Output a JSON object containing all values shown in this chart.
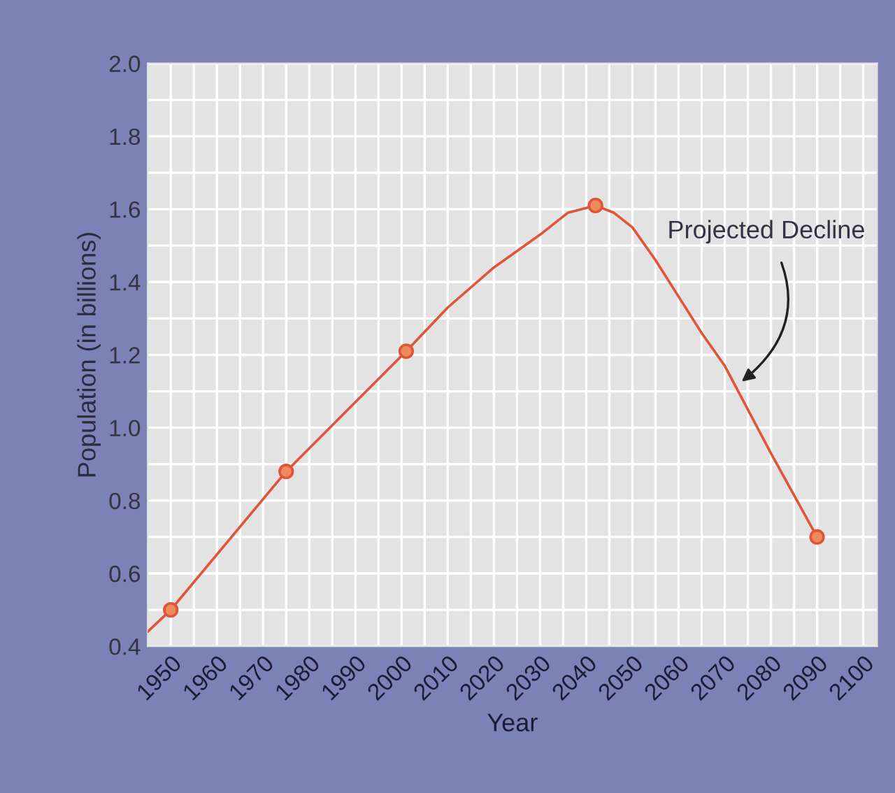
{
  "chart_data": {
    "type": "line",
    "xlabel": "Year",
    "ylabel": "Population (in billions)",
    "xlim": [
      1945,
      2103
    ],
    "ylim": [
      0.4,
      2.0
    ],
    "xticks": [
      1950,
      {
        "value": 1955,
        "label": null
      },
      1960,
      {
        "value": 1965,
        "label": null
      },
      1970,
      {
        "value": 1975,
        "label": null
      },
      1980,
      {
        "value": 1985,
        "label": null
      },
      1990,
      {
        "value": 1995,
        "label": null
      },
      2000,
      {
        "value": 2005,
        "label": null
      },
      2010,
      {
        "value": 2015,
        "label": null
      },
      2020,
      {
        "value": 2025,
        "label": null
      },
      2030,
      {
        "value": 2035,
        "label": null
      },
      2040,
      {
        "value": 2045,
        "label": null
      },
      2050,
      {
        "value": 2055,
        "label": null
      },
      2060,
      {
        "value": 2065,
        "label": null
      },
      2070,
      {
        "value": 2075,
        "label": null
      },
      2080,
      {
        "value": 2085,
        "label": null
      },
      2090,
      {
        "value": 2095,
        "label": null
      },
      2100
    ],
    "yticks": [
      0.4,
      {
        "value": 0.5,
        "label": null
      },
      0.6,
      {
        "value": 0.7,
        "label": null
      },
      0.8,
      {
        "value": 0.9,
        "label": null
      },
      {
        "value": 1.0,
        "label": "1.0"
      },
      {
        "value": 1.1,
        "label": null
      },
      1.2,
      {
        "value": 1.3,
        "label": null
      },
      1.4,
      {
        "value": 1.5,
        "label": null
      },
      1.6,
      {
        "value": 1.7,
        "label": null
      },
      1.8,
      {
        "value": 1.9,
        "label": null
      },
      {
        "value": 2.0,
        "label": "2.0"
      }
    ],
    "grid": true,
    "legend": false,
    "series": [
      {
        "marker": "none",
        "color": "#e0553a",
        "x": [
          1945,
          1950,
          1975,
          2001,
          2010,
          2020,
          2030,
          2036,
          2042,
          2046,
          2050,
          2055,
          2060,
          2065,
          2070,
          2080,
          2090
        ],
        "values": [
          0.44,
          0.5,
          0.88,
          1.21,
          1.33,
          1.44,
          1.53,
          1.59,
          1.61,
          1.59,
          1.55,
          1.46,
          1.36,
          1.26,
          1.17,
          0.93,
          0.7
        ]
      },
      {
        "type": "scatter",
        "marker": "circle",
        "color": "#e0553a",
        "x": [
          1950,
          1975,
          2001,
          2042,
          2090
        ],
        "values": [
          0.5,
          0.88,
          1.21,
          1.61,
          0.7
        ]
      }
    ],
    "annotations": [
      {
        "text": "Projected Decline",
        "x": 2073,
        "y": 1.12
      }
    ]
  }
}
